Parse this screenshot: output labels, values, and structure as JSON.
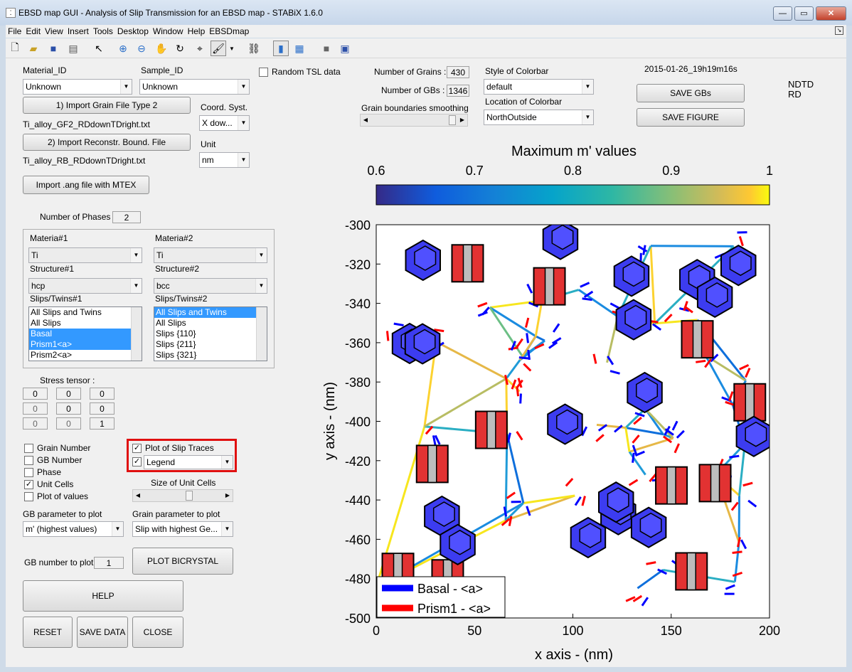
{
  "window": {
    "title": "EBSD map GUI - Analysis of Slip Transmission for an EBSD map -  STABiX 1.6.0",
    "minimize": "—",
    "maximize": "▭",
    "close": "✕"
  },
  "menu": [
    "File",
    "Edit",
    "View",
    "Insert",
    "Tools",
    "Desktop",
    "Window",
    "Help",
    "EBSDmap"
  ],
  "toolbar_icons": [
    "new-file-icon",
    "open-folder-icon",
    "save-icon",
    "print-icon",
    "pointer-icon",
    "zoom-in-icon",
    "zoom-out-icon",
    "pan-icon",
    "rotate-icon",
    "data-cursor-icon",
    "brush-icon",
    "link-icon",
    "colorbar-icon",
    "legend-icon",
    "hide-plot-tools-icon",
    "show-plot-tools-icon"
  ],
  "material": {
    "material_id_label": "Material_ID",
    "material_id_value": "Unknown",
    "sample_id_label": "Sample_ID",
    "sample_id_value": "Unknown",
    "random_tsl": "Random TSL data",
    "import_grain_btn": "1) Import Grain File Type 2",
    "grain_file": "Ti_alloy_GF2_RDdownTDright.txt",
    "import_rb_btn": "2) Import Reconstr. Bound. File",
    "rb_file": "Ti_alloy_RB_RDdownTDright.txt",
    "coord_label": "Coord. Syst.",
    "coord_value": "X dow...",
    "unit_label": "Unit",
    "unit_value": "nm",
    "import_ang_btn": "Import .ang file with MTEX"
  },
  "phases": {
    "label": "Number of Phases",
    "value": "2",
    "m1_label": "Materia#1",
    "m1_value": "Ti",
    "s1_label": "Structure#1",
    "s1_value": "hcp",
    "st1_label": "Slips/Twins#1",
    "list1": [
      "All Slips and Twins",
      "All Slips",
      "Basal",
      "Prism1<a>",
      "Prism2<a>"
    ],
    "m2_label": "Materia#2",
    "m2_value": "Ti",
    "s2_label": "Structure#2",
    "s2_value": "bcc",
    "st2_label": "Slips/Twins#2",
    "list2": [
      "All Slips and Twins",
      "All Slips",
      "Slips {110}",
      "Slips {211}",
      "Slips {321}"
    ]
  },
  "stress": {
    "label": "Stress tensor :",
    "values": [
      "0",
      "0",
      "0",
      "0",
      "0",
      "0",
      "0",
      "0",
      "1"
    ]
  },
  "options": {
    "grain_number": "Grain Number",
    "gb_number": "GB Number",
    "phase": "Phase",
    "unit_cells": "Unit Cells",
    "plot_values": "Plot of values",
    "slip_traces": "Plot of Slip Traces",
    "legend": "Legend",
    "size_cells": "Size of Unit Cells",
    "gb_param_label": "GB parameter to plot",
    "gb_param_value": "m' (highest values)",
    "grain_param_label": "Grain parameter to plot",
    "grain_param_value": "Slip with highest Ge...",
    "gb_number_label": "GB number to plot",
    "gb_number_value": "1",
    "plot_bicrystal": "PLOT BICRYSTAL",
    "help": "HELP",
    "reset": "RESET",
    "save_data": "SAVE DATA",
    "close": "CLOSE"
  },
  "stats": {
    "grains_label": "Number of Grains :",
    "grains_value": "430",
    "gbs_label": "Number of GBs :",
    "gbs_value": "1346",
    "smoothing_label": "Grain boundaries smoothing",
    "colorbar_style_label": "Style of Colorbar",
    "colorbar_style_value": "default",
    "colorbar_loc_label": "Location of Colorbar",
    "colorbar_loc_value": "NorthOutside",
    "timestamp": "2015-01-26_19h19m16s",
    "save_gbs": "SAVE GBs",
    "save_figure": "SAVE FIGURE",
    "ndtd": "NDTD",
    "rd": "RD"
  },
  "chart_data": {
    "type": "map",
    "colorbar_title": "Maximum m' values",
    "colorbar_ticks": [
      "0.6",
      "0.7",
      "0.8",
      "0.9",
      "1"
    ],
    "colorbar_range": [
      0.6,
      1.0
    ],
    "xlabel": "x axis - (nm)",
    "ylabel": "y axis - (nm)",
    "xlim": [
      0,
      200
    ],
    "ylim": [
      -500,
      -300
    ],
    "xticks": [
      "0",
      "50",
      "100",
      "150",
      "200"
    ],
    "yticks": [
      "-300",
      "-320",
      "-340",
      "-360",
      "-380",
      "-400",
      "-420",
      "-440",
      "-460",
      "-480",
      "-500"
    ],
    "legend": [
      {
        "name": "Basal - <a>",
        "color": "#0000ff"
      },
      {
        "name": "Prism1 - <a>",
        "color": "#ff0000"
      }
    ]
  }
}
